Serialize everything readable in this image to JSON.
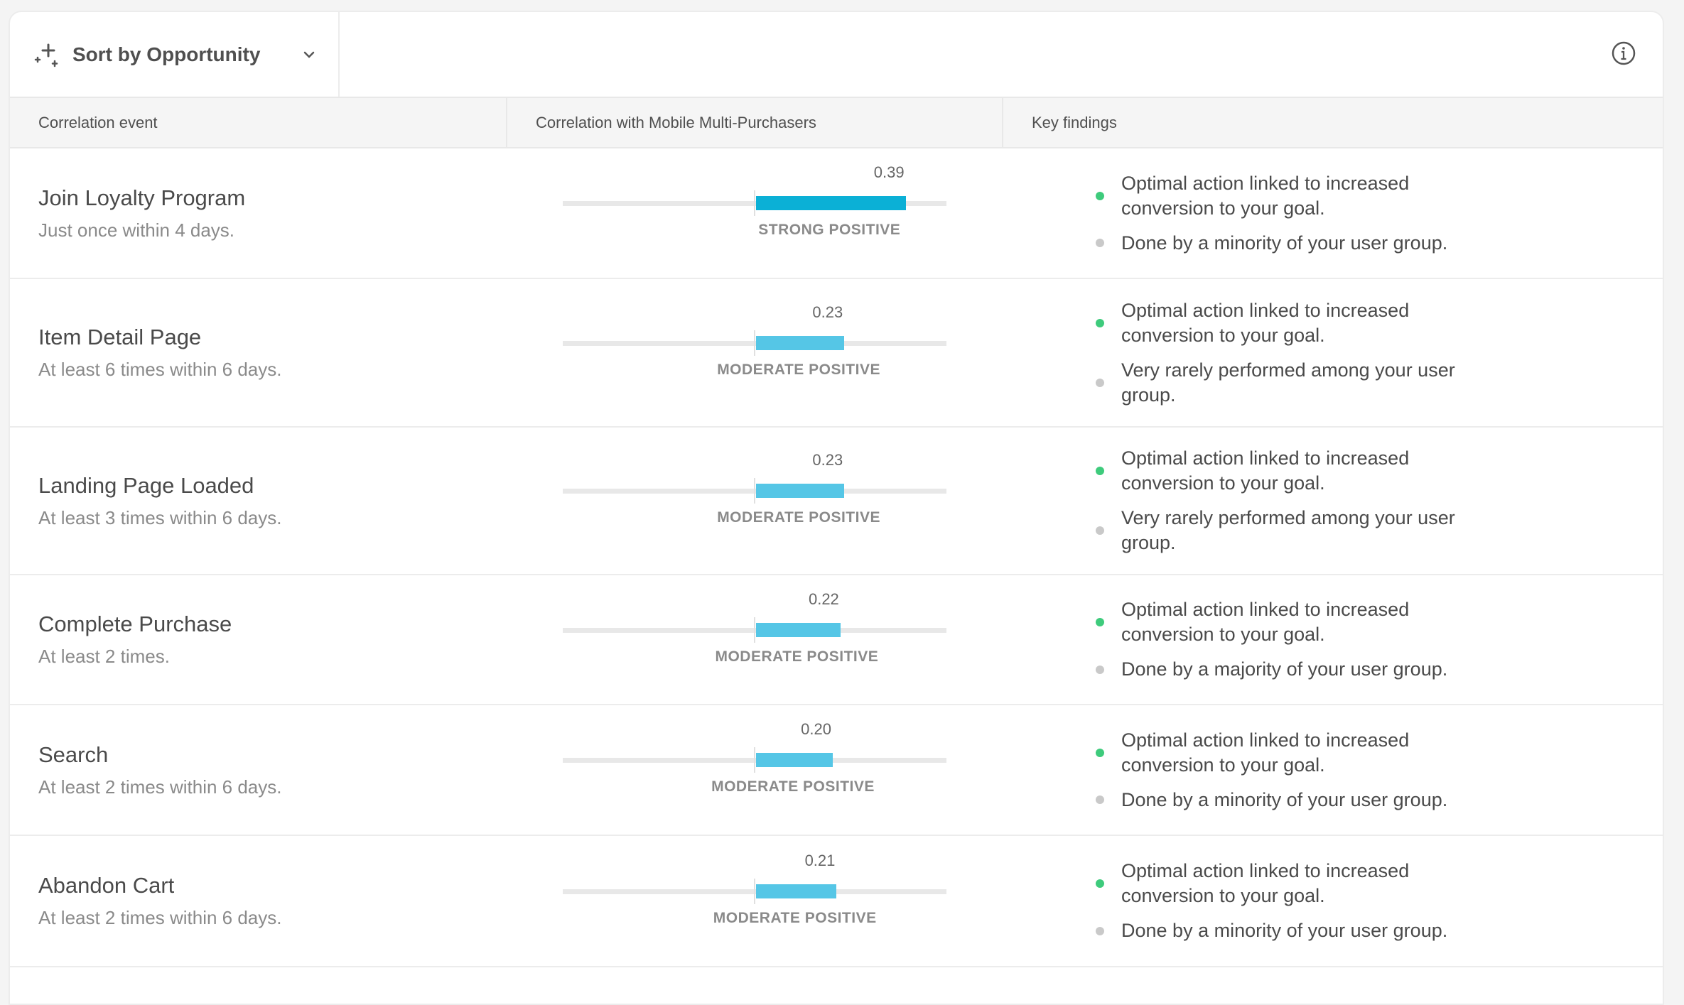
{
  "toolbar": {
    "sort_label": "Sort by Opportunity",
    "sort_icon": "sparkle-icon",
    "info_icon": "info-icon"
  },
  "columns": {
    "event": "Correlation event",
    "correlation": "Correlation with Mobile Multi-Purchasers",
    "findings": "Key findings"
  },
  "colors": {
    "strong": "#0bb0d6",
    "moderate": "#55c6e6",
    "positive_dot": "#3ecb7c",
    "neutral_dot": "#c9c9c9"
  },
  "rows": [
    {
      "title": "Join Loyalty Program",
      "sub": "Just once within 4 days.",
      "value": 0.39,
      "value_label": "0.39",
      "strength": "STRONG POSITIVE",
      "level": "strong",
      "findings": [
        {
          "type": "positive",
          "text": "Optimal action linked to increased conversion to your goal."
        },
        {
          "type": "neutral",
          "text": "Done by a minority of your user group."
        }
      ]
    },
    {
      "title": "Item Detail Page",
      "sub": "At least 6 times within 6 days.",
      "value": 0.23,
      "value_label": "0.23",
      "strength": "MODERATE POSITIVE",
      "level": "moderate",
      "findings": [
        {
          "type": "positive",
          "text": "Optimal action linked to increased conversion to your goal."
        },
        {
          "type": "neutral",
          "text": "Very rarely performed among your user group."
        }
      ]
    },
    {
      "title": "Landing Page Loaded",
      "sub": "At least 3 times within 6 days.",
      "value": 0.23,
      "value_label": "0.23",
      "strength": "MODERATE POSITIVE",
      "level": "moderate",
      "findings": [
        {
          "type": "positive",
          "text": "Optimal action linked to increased conversion to your goal."
        },
        {
          "type": "neutral",
          "text": "Very rarely performed among your user group."
        }
      ]
    },
    {
      "title": "Complete Purchase",
      "sub": "At least 2 times.",
      "value": 0.22,
      "value_label": "0.22",
      "strength": "MODERATE POSITIVE",
      "level": "moderate",
      "findings": [
        {
          "type": "positive",
          "text": "Optimal action linked to increased conversion to your goal."
        },
        {
          "type": "neutral",
          "text": "Done by a majority of your user group."
        }
      ]
    },
    {
      "title": "Search",
      "sub": "At least 2 times within 6 days.",
      "value": 0.2,
      "value_label": "0.20",
      "strength": "MODERATE POSITIVE",
      "level": "moderate",
      "findings": [
        {
          "type": "positive",
          "text": "Optimal action linked to increased conversion to your goal."
        },
        {
          "type": "neutral",
          "text": "Done by a minority of your user group."
        }
      ]
    },
    {
      "title": "Abandon Cart",
      "sub": "At least 2 times within 6 days.",
      "value": 0.21,
      "value_label": "0.21",
      "strength": "MODERATE POSITIVE",
      "level": "moderate",
      "findings": [
        {
          "type": "positive",
          "text": "Optimal action linked to increased conversion to your goal."
        },
        {
          "type": "neutral",
          "text": "Done by a minority of your user group."
        }
      ]
    }
  ]
}
